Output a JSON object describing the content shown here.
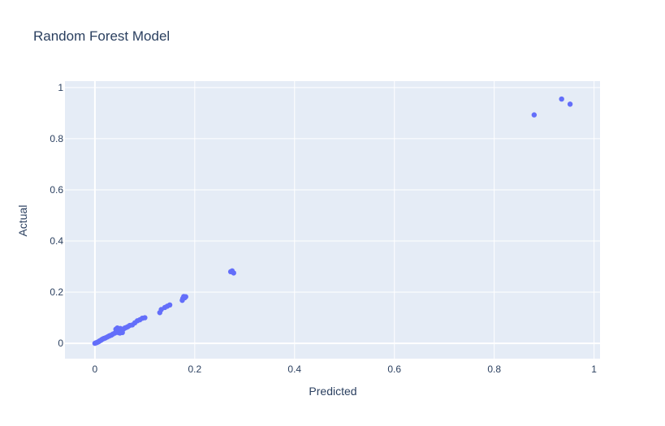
{
  "chart_data": {
    "type": "scatter",
    "title": "Random Forest Model",
    "xlabel": "Predicted",
    "ylabel": "Actual",
    "xlim": [
      -0.06,
      1.012
    ],
    "ylim": [
      -0.06,
      1.025
    ],
    "xticks": [
      0,
      0.2,
      0.4,
      0.6,
      0.8,
      1
    ],
    "xtick_labels": [
      "0",
      "0.2",
      "0.4",
      "0.6",
      "0.8",
      "1"
    ],
    "yticks": [
      0,
      0.2,
      0.4,
      0.6,
      0.8,
      1
    ],
    "ytick_labels": [
      "0",
      "0.2",
      "0.4",
      "0.6",
      "0.8",
      "1"
    ],
    "grid": true,
    "legend": "none",
    "colors": {
      "marker": "#636efa",
      "plot_bg": "#e5ecf6",
      "grid": "#ffffff",
      "text": "#2a3f5f"
    },
    "series": [
      {
        "x": [
          0.0,
          0.002,
          0.004,
          0.006,
          0.008,
          0.01,
          0.012,
          0.014,
          0.016,
          0.018,
          0.02,
          0.022,
          0.025,
          0.028,
          0.03,
          0.033,
          0.036,
          0.04,
          0.042,
          0.044,
          0.045,
          0.047,
          0.048,
          0.05,
          0.051,
          0.052,
          0.053,
          0.055,
          0.057,
          0.06,
          0.063,
          0.066,
          0.07,
          0.075,
          0.08,
          0.085,
          0.09,
          0.095,
          0.1,
          0.13,
          0.133,
          0.14,
          0.145,
          0.15,
          0.175,
          0.176,
          0.178,
          0.18,
          0.182,
          0.272,
          0.275,
          0.278,
          0.88,
          0.935,
          0.952
        ],
        "y": [
          0.0,
          0.002,
          0.003,
          0.005,
          0.007,
          0.01,
          0.012,
          0.015,
          0.017,
          0.019,
          0.02,
          0.022,
          0.025,
          0.028,
          0.03,
          0.032,
          0.036,
          0.04,
          0.055,
          0.045,
          0.06,
          0.042,
          0.05,
          0.04,
          0.058,
          0.045,
          0.05,
          0.042,
          0.055,
          0.06,
          0.062,
          0.065,
          0.07,
          0.072,
          0.08,
          0.088,
          0.092,
          0.098,
          0.1,
          0.12,
          0.132,
          0.14,
          0.145,
          0.15,
          0.168,
          0.175,
          0.183,
          0.178,
          0.182,
          0.28,
          0.283,
          0.275,
          0.893,
          0.955,
          0.935
        ]
      }
    ]
  }
}
